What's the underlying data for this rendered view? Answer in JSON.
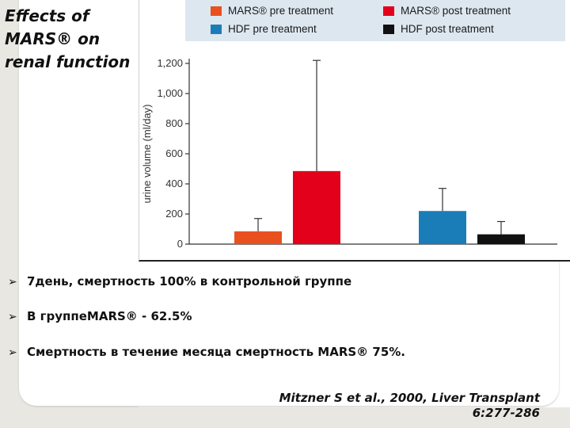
{
  "slide": {
    "title": "Effects of MARS® on renal function",
    "bullets": [
      "7день, смертность 100% в контрольной группе",
      "В группеMARS® - 62.5%",
      "Смертность в течение месяца смертность MARS® 75%."
    ],
    "citation_line1": "Mitzner S et al., 2000, Liver Transplant",
    "citation_line2": "6:277-286",
    "bullet_icon": "arrow-bullet-icon"
  },
  "chart_data": {
    "type": "bar",
    "ylabel": "urine volume (ml/day)",
    "ylim": [
      0,
      1200
    ],
    "yticks": [
      "0",
      "200",
      "400",
      "600",
      "800",
      "1,000",
      "1,200"
    ],
    "ytick_values": [
      0,
      200,
      400,
      600,
      800,
      1000,
      1200
    ],
    "legend_position": "top",
    "series": [
      {
        "name": "MARS® pre treatment",
        "color": "#e8501e",
        "value": 85,
        "error": 170
      },
      {
        "name": "MARS® post treatment",
        "color": "#e2001a",
        "value": 485,
        "error": 1220
      },
      {
        "name": "HDF pre treatment",
        "color": "#1b7db8",
        "value": 220,
        "error": 370
      },
      {
        "name": "HDF post treatment",
        "color": "#111111",
        "value": 65,
        "error": 150
      }
    ]
  }
}
